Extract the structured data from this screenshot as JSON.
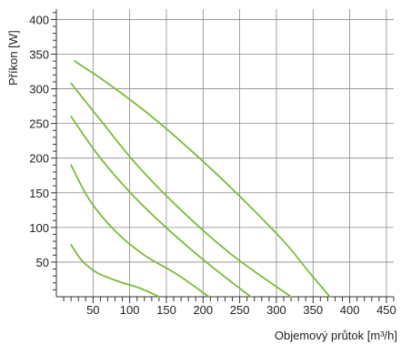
{
  "chart_data": {
    "type": "line",
    "title": "",
    "xlabel": "Objemový průtok [m³/h]",
    "ylabel": "Příkon [W]",
    "xlim": [
      0,
      460
    ],
    "ylim": [
      0,
      415
    ],
    "x_ticks": [
      50,
      100,
      150,
      200,
      250,
      300,
      350,
      400,
      450
    ],
    "y_ticks": [
      50,
      100,
      150,
      200,
      250,
      300,
      350,
      400
    ],
    "grid": true,
    "line_color": "#7cba3a",
    "series": [
      {
        "points": [
          [
            20,
            75
          ],
          [
            35,
            52
          ],
          [
            55,
            35
          ],
          [
            85,
            22
          ],
          [
            115,
            12
          ],
          [
            140,
            0
          ]
        ]
      },
      {
        "points": [
          [
            20,
            190
          ],
          [
            45,
            140
          ],
          [
            80,
            95
          ],
          [
            120,
            60
          ],
          [
            165,
            32
          ],
          [
            208,
            0
          ]
        ]
      },
      {
        "points": [
          [
            20,
            260
          ],
          [
            60,
            200
          ],
          [
            110,
            140
          ],
          [
            160,
            90
          ],
          [
            210,
            45
          ],
          [
            265,
            0
          ]
        ]
      },
      {
        "points": [
          [
            20,
            308
          ],
          [
            60,
            255
          ],
          [
            110,
            190
          ],
          [
            170,
            125
          ],
          [
            240,
            60
          ],
          [
            320,
            0
          ]
        ]
      },
      {
        "points": [
          [
            25,
            340
          ],
          [
            70,
            308
          ],
          [
            130,
            260
          ],
          [
            190,
            205
          ],
          [
            250,
            145
          ],
          [
            310,
            80
          ],
          [
            345,
            35
          ],
          [
            373,
            0
          ]
        ]
      }
    ]
  }
}
